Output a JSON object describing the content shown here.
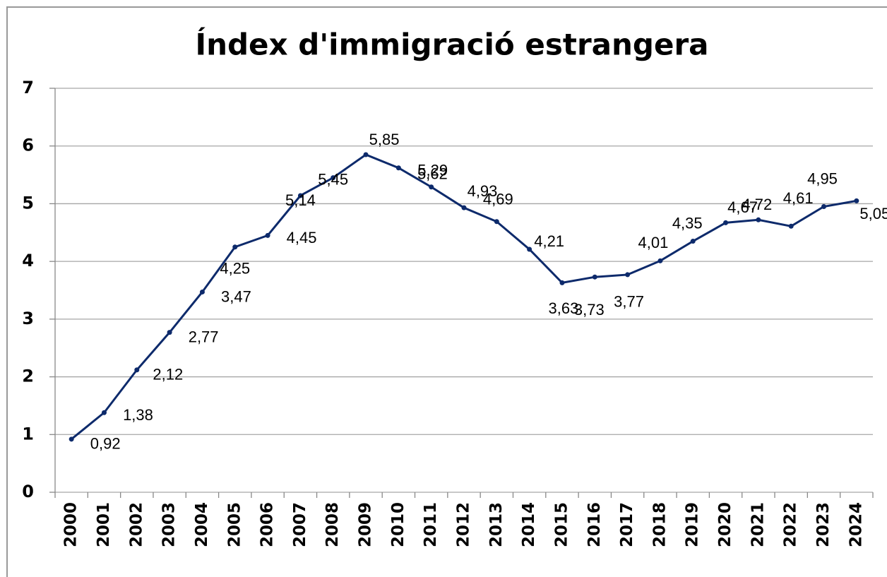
{
  "chart_data": {
    "type": "line",
    "title": "Índex d'immigració estrangera",
    "categories": [
      "2000",
      "2001",
      "2002",
      "2003",
      "2004",
      "2005",
      "2006",
      "2007",
      "2008",
      "2009",
      "2010",
      "2011",
      "2012",
      "2013",
      "2014",
      "2015",
      "2016",
      "2017",
      "2018",
      "2019",
      "2020",
      "2021",
      "2022",
      "2023",
      "2024"
    ],
    "series": [
      {
        "color": "#0d2a6b",
        "values": [
          0.92,
          1.38,
          2.12,
          2.77,
          3.47,
          4.25,
          4.45,
          5.14,
          5.45,
          5.85,
          5.62,
          5.29,
          4.93,
          4.69,
          4.21,
          3.63,
          3.73,
          3.77,
          4.01,
          4.35,
          4.67,
          4.72,
          4.61,
          4.95,
          5.05
        ],
        "value_labels": [
          "0,92",
          "1,38",
          "2,12",
          "2,77",
          "3,47",
          "4,25",
          "4,45",
          "5,14",
          "5,45",
          "5,85",
          "5,62",
          "5,29",
          "4,93",
          "4,69",
          "4,21",
          "3,63",
          "3,73",
          "3,77",
          "4,01",
          "4,35",
          "4,67",
          "4,72",
          "4,61",
          "4,95",
          "5,05"
        ]
      }
    ],
    "ylim": [
      0,
      7
    ],
    "yticks": [
      0,
      1,
      2,
      3,
      4,
      5,
      6,
      7
    ],
    "grid": true
  }
}
